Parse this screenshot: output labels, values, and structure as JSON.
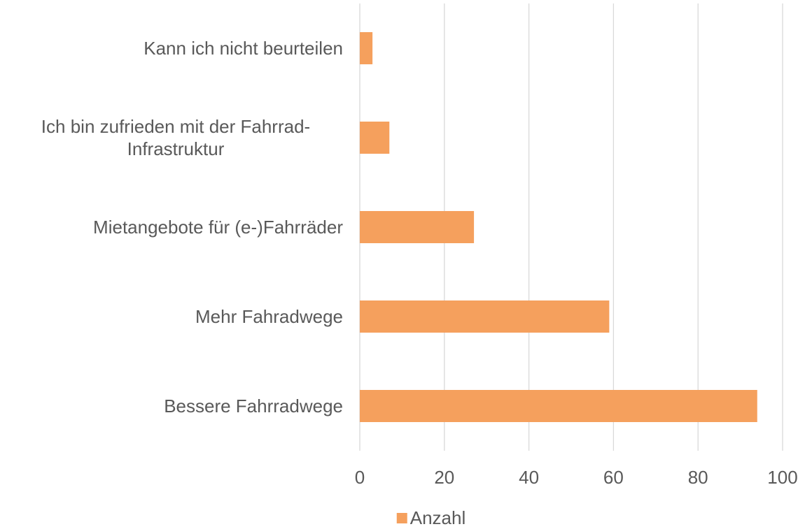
{
  "chart_data": {
    "type": "bar",
    "orientation": "horizontal",
    "categories": [
      "Kann ich nicht beurteilen",
      "Ich bin zufrieden mit der Fahrrad-Infrastruktur",
      "Mietangebote für (e-)Fahrräder",
      "Mehr Fahradwege",
      "Bessere Fahrradwege"
    ],
    "series": [
      {
        "name": "Anzahl",
        "color": "#f5a05d",
        "values": [
          3,
          7,
          27,
          59,
          94
        ]
      }
    ],
    "xlim": [
      0,
      100
    ],
    "xticks": [
      0,
      20,
      40,
      60,
      80,
      100
    ],
    "grid": true,
    "legend": "bottom"
  }
}
